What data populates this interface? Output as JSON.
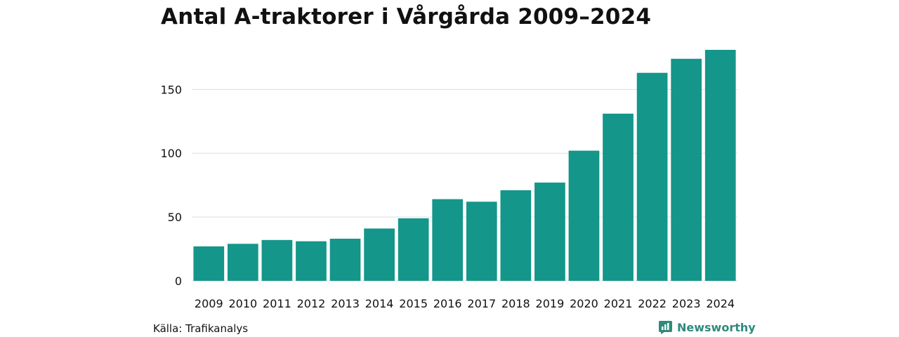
{
  "title": "Antal A-traktorer i Vårgårda 2009–2024",
  "source": "Källa: Trafikanalys",
  "brand": {
    "name": "Newsworthy",
    "icon": "newsworthy-logo-icon",
    "color": "#2e8b7d"
  },
  "chart_data": {
    "type": "bar",
    "title": "Antal A-traktorer i Vårgårda 2009–2024",
    "xlabel": "",
    "ylabel": "",
    "categories": [
      "2009",
      "2010",
      "2011",
      "2012",
      "2013",
      "2014",
      "2015",
      "2016",
      "2017",
      "2018",
      "2019",
      "2020",
      "2021",
      "2022",
      "2023",
      "2024"
    ],
    "values": [
      27,
      29,
      32,
      31,
      33,
      41,
      49,
      64,
      62,
      71,
      77,
      102,
      131,
      163,
      174,
      181
    ],
    "ylim": [
      0,
      181
    ],
    "yticks": [
      0,
      50,
      100,
      150
    ],
    "grid": true,
    "legend": "none",
    "bar_color": "#14968a",
    "grid_color": "#dddddd"
  }
}
